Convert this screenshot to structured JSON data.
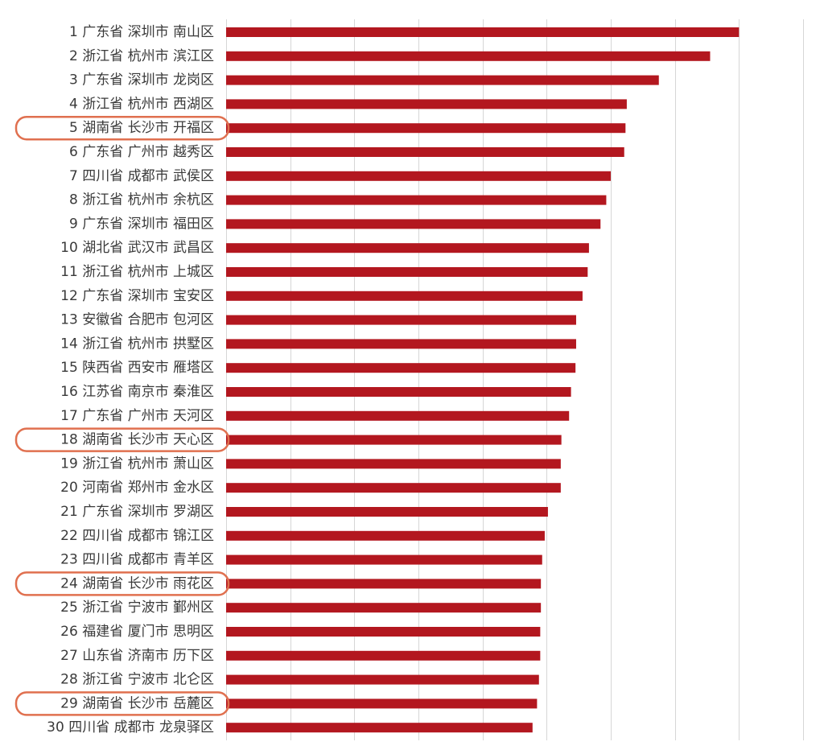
{
  "chart_data": {
    "type": "bar",
    "orientation": "horizontal",
    "categories": [
      "1 广东省  深圳市  南山区",
      "2 浙江省  杭州市  滨江区",
      "3 广东省  深圳市  龙岗区",
      "4 浙江省  杭州市  西湖区",
      "5 湖南省  长沙市  开福区",
      "6 广东省  广州市  越秀区",
      "7 四川省  成都市  武侯区",
      "8 浙江省  杭州市  余杭区",
      "9 广东省  深圳市  福田区",
      "10 湖北省  武汉市  武昌区",
      "11 浙江省  杭州市  上城区",
      "12 广东省  深圳市  宝安区",
      "13 安徽省  合肥市  包河区",
      "14 浙江省  杭州市  拱墅区",
      "15 陕西省  西安市  雁塔区",
      "16 江苏省  南京市  秦淮区",
      "17 广东省  广州市  天河区",
      "18 湖南省  长沙市  天心区",
      "19 浙江省  杭州市  萧山区",
      "20 河南省  郑州市  金水区",
      "21 广东省  深圳市  罗湖区",
      "22 四川省  成都市  锦江区",
      "23 四川省  成都市  青羊区",
      "24 湖南省  长沙市  雨花区",
      "25 浙江省  宁波市  鄞州区",
      "26 福建省  厦门市  思明区",
      "27 山东省  济南市  历下区",
      "28 浙江省  宁波市  北仑区",
      "29 湖南省  长沙市  岳麓区",
      "30 四川省  成都市  龙泉驿区"
    ],
    "values": [
      8.0,
      7.55,
      6.75,
      6.25,
      6.23,
      6.21,
      6.0,
      5.93,
      5.84,
      5.66,
      5.64,
      5.56,
      5.46,
      5.46,
      5.45,
      5.38,
      5.35,
      5.23,
      5.22,
      5.22,
      5.02,
      4.97,
      4.93,
      4.91,
      4.91,
      4.9,
      4.9,
      4.88,
      4.85,
      4.78
    ],
    "highlighted_indices": [
      4,
      17,
      23,
      28
    ],
    "xlim": [
      0,
      9
    ],
    "grid": true,
    "title": "",
    "xlabel": "",
    "ylabel": "",
    "colors": {
      "bar": "#b3171f",
      "highlight_outline": "#e0704f",
      "grid": "#d6d6d6",
      "label": "#3a3a3a"
    }
  }
}
